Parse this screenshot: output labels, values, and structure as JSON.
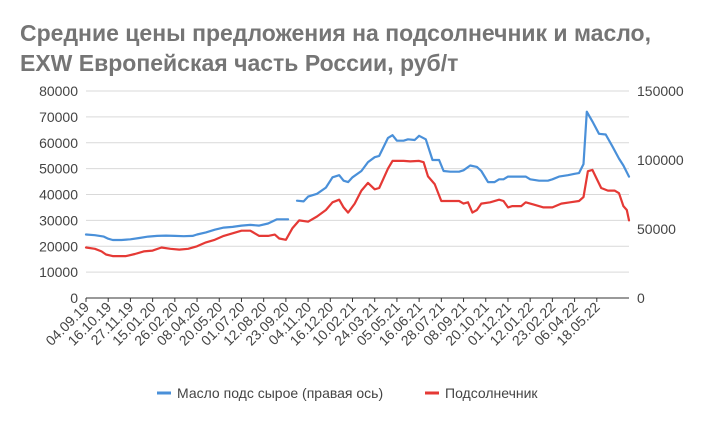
{
  "chart_data": {
    "type": "line",
    "title": "Средние цены предложения на подсолнечник и масло, EXW Европейская часть России, руб/т",
    "xlabel": "",
    "ylabel": "",
    "y_left": {
      "ticks": [
        0,
        10000,
        20000,
        30000,
        40000,
        50000,
        60000,
        70000,
        80000
      ],
      "labels": [
        "0",
        "10000",
        "20000",
        "30000",
        "40000",
        "50000",
        "60000",
        "70000",
        "80000"
      ],
      "ylim": [
        0,
        80000
      ]
    },
    "y_right": {
      "ticks": [
        0,
        50000,
        100000,
        150000
      ],
      "labels": [
        "0",
        "50000",
        "100000",
        "150000"
      ],
      "ylim": [
        0,
        150000
      ]
    },
    "x_tick_labels": [
      "04.09.19",
      "16.10.19",
      "27.11.19",
      "15.01.20",
      "26.02.20",
      "08.04.20",
      "20.05.20",
      "01.07.20",
      "12.08.20",
      "23.09.20",
      "04.11.20",
      "16.12.20",
      "10.02.21",
      "24.03.21",
      "05.05.21",
      "16.06.21",
      "28.07.21",
      "08.09.21",
      "20.10.21",
      "01.12.21",
      "12.01.22",
      "23.02.22",
      "06.04.22",
      "18.05.22"
    ],
    "grid": true,
    "legend_position": "bottom",
    "series": [
      {
        "name": "Масло подс сырое (правая ось)",
        "axis": "right",
        "color": "#4a90d9",
        "segments": [
          [
            [
              0,
              46000
            ],
            [
              0.4,
              45500
            ],
            [
              0.8,
              44500
            ],
            [
              1.0,
              43000
            ],
            [
              1.2,
              42000
            ],
            [
              1.6,
              42000
            ],
            [
              2.0,
              42500
            ],
            [
              2.4,
              43500
            ],
            [
              2.8,
              44500
            ],
            [
              3.2,
              45000
            ],
            [
              3.6,
              45200
            ],
            [
              4.0,
              45000
            ],
            [
              4.4,
              44800
            ],
            [
              4.8,
              45000
            ],
            [
              5.0,
              46000
            ],
            [
              5.4,
              47500
            ],
            [
              5.8,
              49500
            ],
            [
              6.2,
              51000
            ],
            [
              6.6,
              51500
            ],
            [
              7.0,
              52500
            ],
            [
              7.4,
              53000
            ],
            [
              7.8,
              52500
            ],
            [
              8.2,
              54000
            ],
            [
              8.6,
              57000
            ],
            [
              9.0,
              57000
            ],
            [
              9.1,
              57000
            ]
          ],
          [
            [
              9.5,
              70500
            ],
            [
              9.8,
              70000
            ],
            [
              10.0,
              73500
            ],
            [
              10.4,
              75500
            ],
            [
              10.8,
              80000
            ],
            [
              11.1,
              87500
            ],
            [
              11.4,
              89000
            ],
            [
              11.6,
              85000
            ],
            [
              11.8,
              84000
            ],
            [
              12.0,
              87500
            ],
            [
              12.4,
              92000
            ],
            [
              12.7,
              98500
            ],
            [
              13.0,
              102000
            ],
            [
              13.2,
              103000
            ],
            [
              13.6,
              116000
            ],
            [
              13.8,
              118000
            ],
            [
              14.0,
              114000
            ],
            [
              14.3,
              114000
            ],
            [
              14.5,
              115000
            ],
            [
              14.8,
              114500
            ],
            [
              15.0,
              117500
            ],
            [
              15.3,
              115000
            ],
            [
              15.6,
              100000
            ],
            [
              15.9,
              100000
            ],
            [
              16.1,
              92000
            ],
            [
              16.4,
              91500
            ],
            [
              16.8,
              91500
            ],
            [
              17.0,
              92500
            ],
            [
              17.3,
              96000
            ],
            [
              17.6,
              95000
            ],
            [
              17.8,
              92000
            ],
            [
              18.1,
              84000
            ],
            [
              18.4,
              84000
            ],
            [
              18.6,
              86000
            ],
            [
              18.8,
              86000
            ],
            [
              19.0,
              88000
            ],
            [
              19.4,
              88000
            ],
            [
              19.8,
              88000
            ],
            [
              20.0,
              86000
            ],
            [
              20.4,
              85000
            ],
            [
              20.8,
              85000
            ],
            [
              21.0,
              86000
            ],
            [
              21.3,
              88000
            ],
            [
              21.7,
              89000
            ],
            [
              22.0,
              90000
            ],
            [
              22.2,
              90500
            ],
            [
              22.4,
              97000
            ],
            [
              22.55,
              135000
            ],
            [
              22.8,
              128000
            ],
            [
              23.1,
              119000
            ],
            [
              23.4,
              118500
            ],
            [
              23.7,
              110000
            ],
            [
              24.0,
              101000
            ],
            [
              24.2,
              96000
            ],
            [
              24.45,
              88000
            ]
          ]
        ]
      },
      {
        "name": "Подсолнечник",
        "axis": "left",
        "color": "#e53935",
        "segments": [
          [
            [
              0,
              19500
            ],
            [
              0.4,
              19000
            ],
            [
              0.7,
              18000
            ],
            [
              0.9,
              16800
            ],
            [
              1.2,
              16200
            ],
            [
              1.8,
              16200
            ],
            [
              2.2,
              17000
            ],
            [
              2.6,
              18000
            ],
            [
              3.0,
              18300
            ],
            [
              3.4,
              19500
            ],
            [
              3.8,
              19000
            ],
            [
              4.2,
              18700
            ],
            [
              4.6,
              19000
            ],
            [
              5.0,
              20000
            ],
            [
              5.4,
              21500
            ],
            [
              5.8,
              22500
            ],
            [
              6.2,
              24000
            ],
            [
              6.6,
              25000
            ],
            [
              7.0,
              26000
            ],
            [
              7.4,
              26000
            ],
            [
              7.8,
              24000
            ],
            [
              8.2,
              24000
            ],
            [
              8.5,
              24500
            ],
            [
              8.7,
              23000
            ],
            [
              9.0,
              22500
            ],
            [
              9.3,
              27000
            ],
            [
              9.6,
              30000
            ],
            [
              10.0,
              29500
            ],
            [
              10.4,
              31500
            ],
            [
              10.8,
              34000
            ],
            [
              11.1,
              37000
            ],
            [
              11.4,
              38000
            ],
            [
              11.6,
              35000
            ],
            [
              11.8,
              33000
            ],
            [
              12.1,
              36500
            ],
            [
              12.4,
              41500
            ],
            [
              12.7,
              44500
            ],
            [
              13.0,
              42000
            ],
            [
              13.2,
              42500
            ],
            [
              13.6,
              50000
            ],
            [
              13.8,
              53000
            ],
            [
              14.0,
              53000
            ],
            [
              14.3,
              53000
            ],
            [
              14.6,
              52800
            ],
            [
              15.0,
              53000
            ],
            [
              15.2,
              52500
            ],
            [
              15.4,
              47000
            ],
            [
              15.7,
              44000
            ],
            [
              16.0,
              37500
            ],
            [
              16.4,
              37500
            ],
            [
              16.8,
              37500
            ],
            [
              17.0,
              36500
            ],
            [
              17.2,
              37000
            ],
            [
              17.4,
              33000
            ],
            [
              17.6,
              34000
            ],
            [
              17.8,
              36500
            ],
            [
              18.2,
              37000
            ],
            [
              18.6,
              38000
            ],
            [
              18.8,
              37500
            ],
            [
              19.0,
              35000
            ],
            [
              19.2,
              35500
            ],
            [
              19.6,
              35500
            ],
            [
              19.8,
              37000
            ],
            [
              20.2,
              36000
            ],
            [
              20.6,
              35000
            ],
            [
              21.0,
              35000
            ],
            [
              21.4,
              36500
            ],
            [
              21.8,
              37000
            ],
            [
              22.2,
              37500
            ],
            [
              22.4,
              39000
            ],
            [
              22.6,
              49000
            ],
            [
              22.8,
              49500
            ],
            [
              23.0,
              46000
            ],
            [
              23.2,
              42500
            ],
            [
              23.5,
              41500
            ],
            [
              23.8,
              41500
            ],
            [
              24.0,
              40500
            ],
            [
              24.2,
              35500
            ],
            [
              24.35,
              34000
            ],
            [
              24.45,
              30000
            ]
          ]
        ]
      }
    ]
  }
}
